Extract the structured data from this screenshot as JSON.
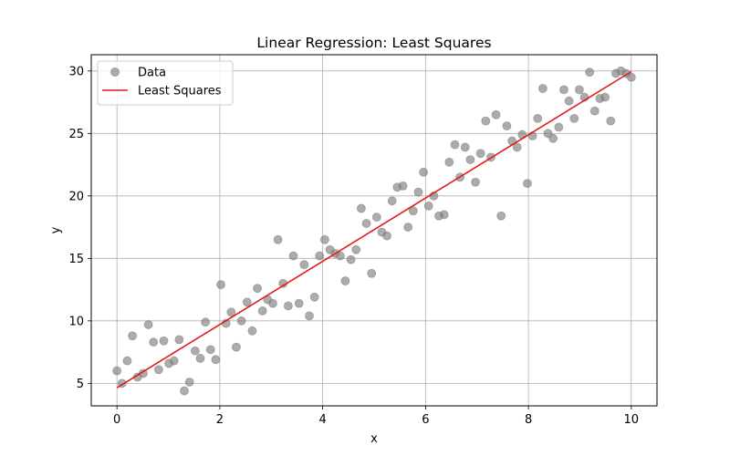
{
  "chart_data": {
    "type": "scatter",
    "title": "Linear Regression: Least Squares",
    "xlabel": "x",
    "ylabel": "y",
    "xlim": [
      -0.5,
      10.5
    ],
    "ylim": [
      3.2,
      31.3
    ],
    "xticks": [
      0,
      2,
      4,
      6,
      8,
      10
    ],
    "yticks": [
      5,
      10,
      15,
      20,
      25,
      30
    ],
    "grid": true,
    "legend_position": "top-left",
    "series": [
      {
        "name": "Data",
        "kind": "scatter",
        "color": "#808080",
        "x": [
          0.0,
          0.1,
          0.2,
          0.3,
          0.4,
          0.51,
          0.61,
          0.71,
          0.81,
          0.91,
          1.01,
          1.11,
          1.21,
          1.31,
          1.41,
          1.52,
          1.62,
          1.72,
          1.82,
          1.92,
          2.02,
          2.12,
          2.22,
          2.32,
          2.42,
          2.53,
          2.63,
          2.73,
          2.83,
          2.93,
          3.03,
          3.13,
          3.23,
          3.33,
          3.43,
          3.54,
          3.64,
          3.74,
          3.84,
          3.94,
          4.04,
          4.14,
          4.24,
          4.34,
          4.44,
          4.55,
          4.65,
          4.75,
          4.85,
          4.95,
          5.05,
          5.15,
          5.25,
          5.35,
          5.45,
          5.56,
          5.66,
          5.76,
          5.86,
          5.96,
          6.06,
          6.16,
          6.26,
          6.36,
          6.46,
          6.57,
          6.67,
          6.77,
          6.87,
          6.97,
          7.07,
          7.17,
          7.27,
          7.37,
          7.47,
          7.58,
          7.68,
          7.78,
          7.88,
          7.98,
          8.08,
          8.18,
          8.28,
          8.38,
          8.48,
          8.59,
          8.69,
          8.79,
          8.89,
          8.99,
          9.09,
          9.19,
          9.29,
          9.39,
          9.49,
          9.6,
          9.7,
          9.8,
          9.9,
          10.0
        ],
        "y": [
          6.0,
          5.0,
          6.8,
          8.8,
          5.5,
          5.8,
          9.7,
          8.3,
          6.1,
          8.4,
          6.6,
          6.8,
          8.5,
          4.4,
          5.1,
          7.6,
          7.0,
          9.9,
          7.7,
          6.9,
          12.9,
          9.8,
          10.7,
          7.9,
          10.0,
          11.5,
          9.2,
          12.6,
          10.8,
          11.7,
          11.4,
          16.5,
          13.0,
          11.2,
          15.2,
          11.4,
          14.5,
          10.4,
          11.9,
          15.2,
          16.5,
          15.7,
          15.4,
          15.2,
          13.2,
          14.9,
          15.7,
          19.0,
          17.8,
          13.8,
          18.3,
          17.1,
          16.8,
          19.6,
          20.7,
          20.8,
          17.5,
          18.8,
          20.3,
          21.9,
          19.2,
          20.0,
          18.4,
          18.5,
          22.7,
          24.1,
          21.5,
          23.9,
          22.9,
          21.1,
          23.4,
          26.0,
          23.1,
          26.5,
          18.4,
          25.6,
          24.4,
          23.9,
          24.9,
          21.0,
          24.8,
          26.2,
          28.6,
          25.0,
          24.6,
          25.5,
          28.5,
          27.6,
          26.2,
          28.5,
          27.9,
          29.9,
          26.8,
          27.8,
          27.9,
          26.0,
          29.8,
          30.0,
          29.8,
          29.5
        ]
      },
      {
        "name": "Least Squares",
        "kind": "line",
        "color": "#e31a1c",
        "x": [
          0,
          10
        ],
        "y": [
          4.65,
          29.95
        ]
      }
    ]
  }
}
